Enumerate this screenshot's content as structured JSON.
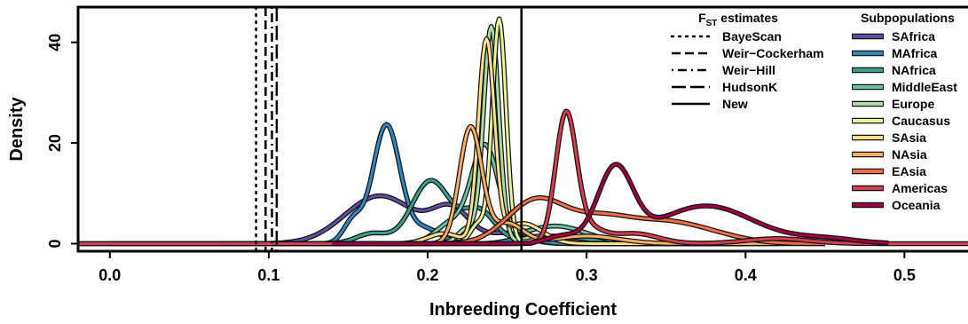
{
  "chart_data": {
    "type": "line",
    "title": "",
    "xlabel": "Inbreeding Coefficient",
    "ylabel": "Density",
    "xlim": [
      -0.02,
      0.54
    ],
    "ylim": [
      -1.5,
      47
    ],
    "x_ticks": [
      0.0,
      0.1,
      0.2,
      0.3,
      0.4,
      0.5
    ],
    "x_tick_labels": [
      "0.0",
      "0.1",
      "0.2",
      "0.3",
      "0.4",
      "0.5"
    ],
    "y_ticks": [
      0,
      20,
      40
    ],
    "y_tick_labels": [
      "0",
      "20",
      "40"
    ],
    "fst_legend_title": "F",
    "fst_legend_title_sub": "ST",
    "fst_legend_title_rest": " estimates",
    "fst_estimates": [
      {
        "name": "BayeScan",
        "value": 0.092,
        "dash": "dotted"
      },
      {
        "name": "Weir−Cockerham",
        "value": 0.098,
        "dash": "dashed"
      },
      {
        "name": "Weir−Hill",
        "value": 0.102,
        "dash": "dotdash"
      },
      {
        "name": "HudsonK",
        "value": 0.105,
        "dash": "longdash"
      },
      {
        "name": "New",
        "value": 0.259,
        "dash": "solid"
      }
    ],
    "subpop_legend_title": "Subpopulations",
    "series": [
      {
        "name": "SAfrica",
        "color": "#5E4FA2",
        "peaks": [
          [
            0.17,
            9.5,
            0.022
          ],
          [
            0.215,
            6.5,
            0.012
          ],
          [
            0.25,
            2.0,
            0.012
          ]
        ],
        "range": [
          -0.02,
          0.45
        ]
      },
      {
        "name": "MAfrica",
        "color": "#3288BD",
        "peaks": [
          [
            0.174,
            23.5,
            0.0085
          ],
          [
            0.153,
            4.5,
            0.006
          ],
          [
            0.198,
            3.0,
            0.01
          ],
          [
            0.26,
            1.0,
            0.01
          ]
        ],
        "range": [
          0.1,
          0.33
        ]
      },
      {
        "name": "NAfrica",
        "color": "#3A9E8D",
        "peaks": [
          [
            0.202,
            12.5,
            0.012
          ],
          [
            0.232,
            6.5,
            0.01
          ],
          [
            0.165,
            2.0,
            0.01
          ],
          [
            0.28,
            1.5,
            0.02
          ]
        ],
        "range": [
          0.12,
          0.38
        ]
      },
      {
        "name": "MiddleEast",
        "color": "#66C2A5",
        "peaks": [
          [
            0.236,
            19.0,
            0.0085
          ],
          [
            0.215,
            4.0,
            0.01
          ],
          [
            0.28,
            3.5,
            0.02
          ]
        ],
        "range": [
          0.13,
          0.4
        ]
      },
      {
        "name": "Europe",
        "color": "#ABDDA4",
        "peaks": [
          [
            0.24,
            43.0,
            0.0048
          ],
          [
            0.225,
            3.0,
            0.006
          ],
          [
            0.27,
            1.5,
            0.01
          ]
        ],
        "range": [
          0.15,
          0.4
        ]
      },
      {
        "name": "Caucasus",
        "color": "#E6F598",
        "peaks": [
          [
            0.245,
            44.5,
            0.0043
          ],
          [
            0.232,
            4.0,
            0.005
          ],
          [
            0.275,
            1.0,
            0.01
          ]
        ],
        "range": [
          0.16,
          0.4
        ]
      },
      {
        "name": "SAsia",
        "color": "#FEE08B",
        "peaks": [
          [
            0.237,
            40.0,
            0.005
          ],
          [
            0.26,
            4.0,
            0.012
          ],
          [
            0.21,
            2.0,
            0.01
          ]
        ],
        "range": [
          0.0,
          0.41
        ]
      },
      {
        "name": "NAsia",
        "color": "#FDAE61",
        "peaks": [
          [
            0.227,
            23.0,
            0.007
          ],
          [
            0.25,
            4.0,
            0.01
          ],
          [
            0.3,
            1.5,
            0.02
          ]
        ],
        "range": [
          0.07,
          0.42
        ]
      },
      {
        "name": "EAsia",
        "color": "#F46D43",
        "peaks": [
          [
            0.268,
            8.5,
            0.018
          ],
          [
            0.31,
            5.0,
            0.02
          ],
          [
            0.35,
            3.5,
            0.02
          ],
          [
            0.38,
            1.5,
            0.02
          ]
        ],
        "range": [
          0.14,
          0.45
        ]
      },
      {
        "name": "Americas",
        "color": "#D53E4F",
        "peaks": [
          [
            0.287,
            25.0,
            0.0065
          ],
          [
            0.3,
            3.0,
            0.01
          ],
          [
            0.33,
            2.0,
            0.015
          ],
          [
            0.42,
            1.0,
            0.02
          ]
        ],
        "range": [
          -0.02,
          0.54
        ]
      },
      {
        "name": "Oceania",
        "color": "#9E0142",
        "peaks": [
          [
            0.318,
            14.5,
            0.011
          ],
          [
            0.375,
            7.5,
            0.03
          ],
          [
            0.285,
            1.5,
            0.01
          ],
          [
            0.45,
            1.0,
            0.02
          ]
        ],
        "range": [
          0.14,
          0.49
        ]
      }
    ]
  }
}
